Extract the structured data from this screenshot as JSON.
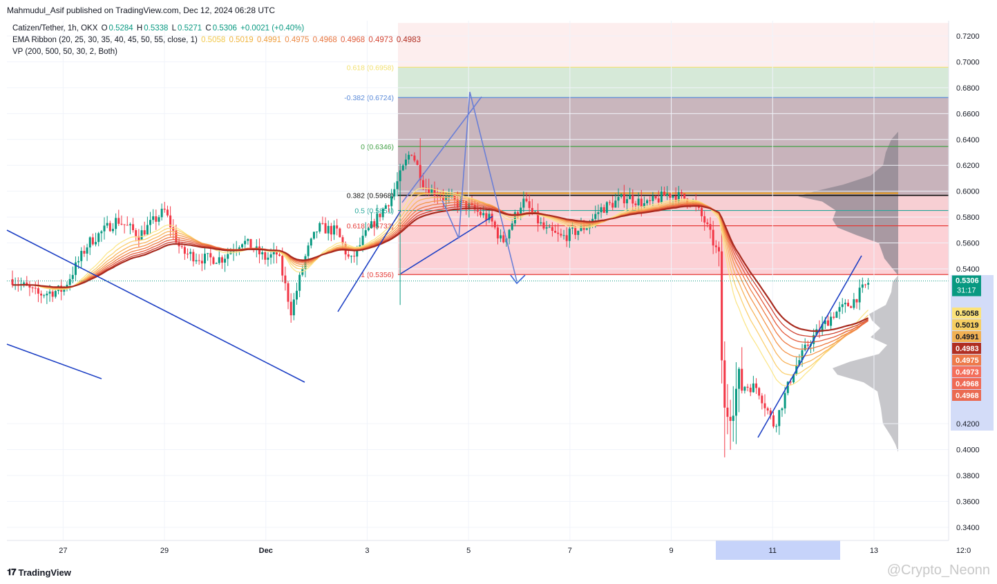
{
  "header": {
    "publisher": "Mahmudul_Asif published on TradingView.com, Dec 12, 2024 06:28 UTC"
  },
  "legend": {
    "symbol": "Catizen/Tether, 1h, OKX",
    "o_label": "O",
    "o_value": "0.5284",
    "h_label": "H",
    "h_value": "0.5338",
    "l_label": "L",
    "l_value": "0.5271",
    "c_label": "C",
    "c_value": "0.5306",
    "change": "+0.0021 (+0.40%)",
    "ema_label": "EMA Ribbon (20, 25, 30, 35, 40, 45, 50, 55, close, 1)",
    "ema_values": [
      "0.5058",
      "0.5019",
      "0.4991",
      "0.4975",
      "0.4968",
      "0.4968",
      "0.4973",
      "0.4983"
    ],
    "vp_label": "VP (200, 500, 50, 30, 2, Both)"
  },
  "footer": {
    "brand": "TradingView",
    "watermark": "@Crypto_Neonn"
  },
  "colors": {
    "up": "#089981",
    "down": "#f23645",
    "trend": "#1c3fc4",
    "ema": [
      "#fbe68a",
      "#fbd070",
      "#f8b45c",
      "#f4964c",
      "#ee7a42",
      "#e45a3a",
      "#cf4030",
      "#a82a1e"
    ]
  },
  "chart_data": {
    "type": "candlestick",
    "title": "Catizen/Tether, 1h, OKX",
    "y_range": [
      0.33,
      0.73
    ],
    "y_ticks": [
      "0.7200",
      "0.7000",
      "0.6800",
      "0.6600",
      "0.6400",
      "0.6200",
      "0.6000",
      "0.5800",
      "0.5600",
      "0.5400",
      "0.4200",
      "0.4000",
      "0.3800",
      "0.3600",
      "0.3400"
    ],
    "x_ticks": [
      "27",
      "29",
      "Dec",
      "3",
      "5",
      "7",
      "9",
      "11",
      "13",
      "12:0"
    ],
    "last_price": "0.5306",
    "countdown": "31:17",
    "ema_badges": [
      "0.5058",
      "0.5019",
      "0.4991",
      "0.4983",
      "0.4975",
      "0.4973",
      "0.4968",
      "0.4968"
    ],
    "fib_levels": [
      {
        "label": "0.618 (0.6958)",
        "price": 0.6958
      },
      {
        "label": "-0.382 (0.6724)",
        "price": 0.6724
      },
      {
        "label": "0 (0.6346)",
        "price": 0.6346
      },
      {
        "label": "0.382 (0.5968)",
        "price": 0.5968
      },
      {
        "label": "0.5 (0.5851)",
        "price": 0.5851
      },
      {
        "label": "0.618 (0.5733)",
        "price": 0.5733
      },
      {
        "label": "1 (0.5356)",
        "price": 0.5356
      }
    ],
    "series": [
      {
        "name": "Catizen/Tether",
        "points": [
          [
            0.0,
            0.532
          ],
          [
            1.5,
            0.52
          ],
          [
            3.0,
            0.524
          ],
          [
            4.5,
            0.56
          ],
          [
            6.2,
            0.578
          ],
          [
            7.5,
            0.566
          ],
          [
            9.0,
            0.585
          ],
          [
            10.0,
            0.553
          ],
          [
            11.2,
            0.548
          ],
          [
            12.4,
            0.548
          ],
          [
            13.6,
            0.562
          ],
          [
            15.0,
            0.548
          ],
          [
            15.7,
            0.552
          ],
          [
            16.5,
            0.507
          ],
          [
            17.4,
            0.552
          ],
          [
            18.1,
            0.572
          ],
          [
            19.2,
            0.569
          ],
          [
            20.0,
            0.545
          ],
          [
            20.9,
            0.566
          ],
          [
            22.4,
            0.595
          ],
          [
            23.6,
            0.632
          ],
          [
            24.4,
            0.604
          ],
          [
            25.7,
            0.594
          ],
          [
            27.0,
            0.588
          ],
          [
            28.3,
            0.578
          ],
          [
            29.0,
            0.56
          ],
          [
            30.2,
            0.593
          ],
          [
            31.5,
            0.57
          ],
          [
            32.5,
            0.564
          ],
          [
            34.0,
            0.573
          ],
          [
            34.8,
            0.586
          ],
          [
            36.4,
            0.596
          ],
          [
            37.5,
            0.589
          ],
          [
            38.8,
            0.598
          ],
          [
            40.2,
            0.593
          ],
          [
            41.0,
            0.576
          ],
          [
            41.8,
            0.55
          ],
          [
            42.1,
            0.425
          ],
          [
            43.0,
            0.45
          ],
          [
            44.1,
            0.448
          ],
          [
            45.1,
            0.418
          ],
          [
            46.2,
            0.46
          ],
          [
            47.2,
            0.484
          ],
          [
            48.6,
            0.505
          ],
          [
            49.7,
            0.514
          ],
          [
            50.7,
            0.53
          ]
        ]
      }
    ]
  }
}
